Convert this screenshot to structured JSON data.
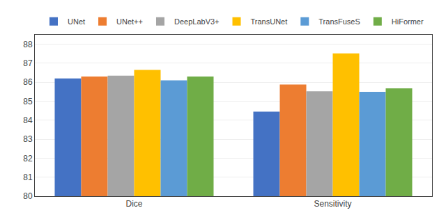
{
  "chart_data": {
    "type": "bar",
    "categories": [
      "Dice",
      "Sensitivity"
    ],
    "series": [
      {
        "name": "UNet",
        "color": "#4472C4",
        "values": [
          86.2,
          84.45
        ]
      },
      {
        "name": "UNet++",
        "color": "#ED7D31",
        "values": [
          86.3,
          85.88
        ]
      },
      {
        "name": "DeepLabV3+",
        "color": "#A5A5A5",
        "values": [
          86.35,
          85.52
        ]
      },
      {
        "name": "TransUNet",
        "color": "#FFC000",
        "values": [
          86.65,
          87.52
        ]
      },
      {
        "name": "TransFuseS",
        "color": "#5B9BD5",
        "values": [
          86.1,
          85.5
        ]
      },
      {
        "name": "HiFormer",
        "color": "#70AD47",
        "values": [
          86.3,
          85.68
        ]
      }
    ],
    "ylim": [
      80,
      88.5
    ],
    "yticks": [
      80,
      81,
      82,
      83,
      84,
      85,
      86,
      87,
      88
    ],
    "grid": true,
    "legend": "top"
  }
}
